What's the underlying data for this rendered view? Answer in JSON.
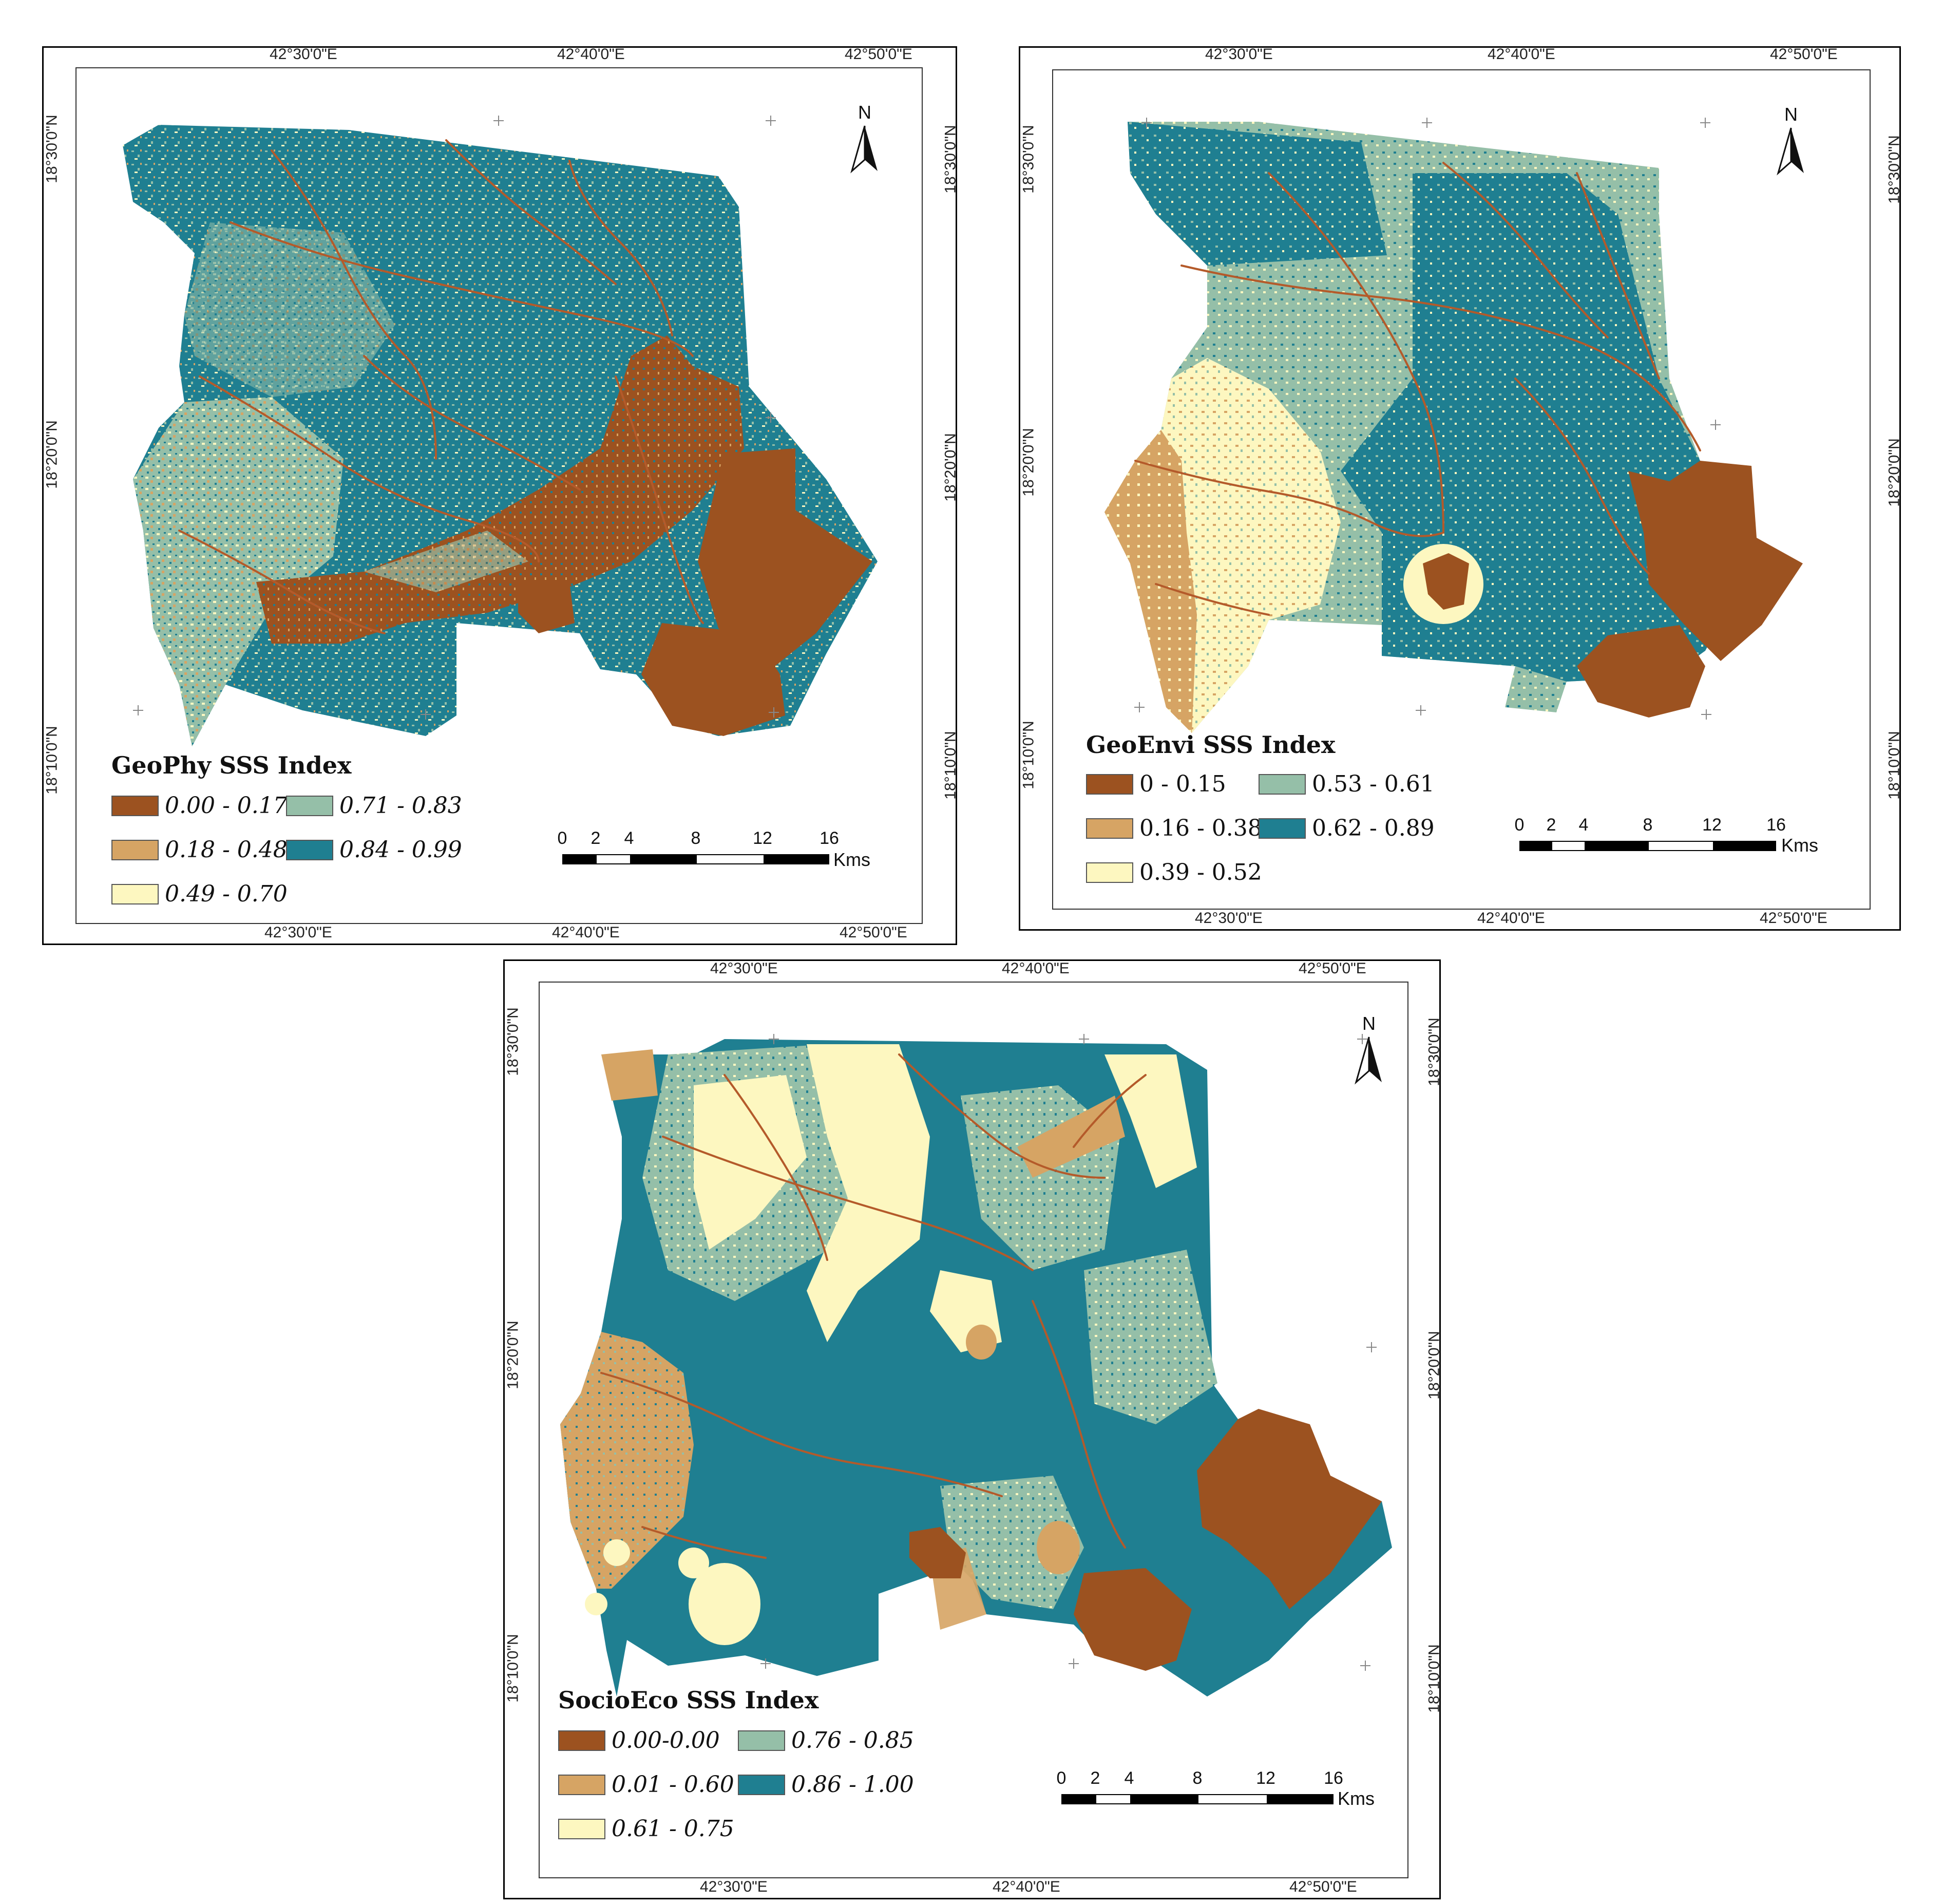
{
  "colors": {
    "c1": "#9c5220",
    "c2": "#d6a464",
    "c3": "#fdf7c0",
    "c4": "#95bfa8",
    "c5": "#1f7f91",
    "river": "#b45a2a"
  },
  "panels": [
    {
      "id": "geophy",
      "title": "GeoPhy SSS Index",
      "legend_italic": true,
      "legend": [
        {
          "label": "0.00 - 0.17",
          "color": "c1"
        },
        {
          "label": "0.71 - 0.83",
          "color": "c4"
        },
        {
          "label": "0.18 - 0.48",
          "color": "c2"
        },
        {
          "label": "0.84 - 0.99",
          "color": "c5"
        },
        {
          "label": "0.49 - 0.70",
          "color": "c3"
        }
      ],
      "top_lon": [
        "42°30'0\"E",
        "42°40'0\"E",
        "42°50'0\"E"
      ],
      "bottom_lon": [
        "42°30'0\"E",
        "42°40'0\"E",
        "42°50'0\"E"
      ],
      "left_lat": [
        "18°30'0\"N",
        "18°20'0\"N",
        "18°10'0\"N"
      ],
      "right_lat": [
        "18°30'0\"N",
        "18°20'0\"N",
        "18°10'0\"N"
      ],
      "north": "N",
      "scale": [
        "0",
        "2",
        "4",
        "8",
        "12",
        "16"
      ],
      "scale_unit": "Kms"
    },
    {
      "id": "geoenvi",
      "title": "GeoEnvi SSS Index",
      "legend_italic": false,
      "legend": [
        {
          "label": "0 - 0.15",
          "color": "c1"
        },
        {
          "label": "0.53 - 0.61",
          "color": "c4"
        },
        {
          "label": "0.16 - 0.38",
          "color": "c2"
        },
        {
          "label": "0.62 - 0.89",
          "color": "c5"
        },
        {
          "label": "0.39 - 0.52",
          "color": "c3"
        }
      ],
      "top_lon": [
        "42°30'0\"E",
        "42°40'0\"E",
        "42°50'0\"E"
      ],
      "bottom_lon": [
        "42°30'0\"E",
        "42°40'0\"E",
        "42°50'0\"E"
      ],
      "left_lat": [
        "18°30'0\"N",
        "18°20'0\"N",
        "18°10'0\"N"
      ],
      "right_lat": [
        "18°30'0\"N",
        "18°20'0\"N",
        "18°10'0\"N"
      ],
      "north": "N",
      "scale": [
        "0",
        "2",
        "4",
        "8",
        "12",
        "16"
      ],
      "scale_unit": "Kms"
    },
    {
      "id": "socioeco",
      "title": "SocioEco SSS Index",
      "legend_italic": true,
      "legend": [
        {
          "label": "0.00-0.00",
          "color": "c1"
        },
        {
          "label": "0.76 - 0.85",
          "color": "c4"
        },
        {
          "label": "0.01 - 0.60",
          "color": "c2"
        },
        {
          "label": "0.86 - 1.00",
          "color": "c5"
        },
        {
          "label": "0.61 - 0.75",
          "color": "c3"
        }
      ],
      "top_lon": [
        "42°30'0\"E",
        "42°40'0\"E",
        "42°50'0\"E"
      ],
      "bottom_lon": [
        "42°30'0\"E",
        "42°40'0\"E",
        "42°50'0\"E"
      ],
      "left_lat": [
        "18°30'0\"N",
        "18°20'0\"N",
        "18°10'0\"N"
      ],
      "right_lat": [
        "18°30'0\"N",
        "18°20'0\"N",
        "18°10'0\"N"
      ],
      "north": "N",
      "scale": [
        "0",
        "2",
        "4",
        "8",
        "12",
        "16"
      ],
      "scale_unit": "Kms"
    }
  ]
}
